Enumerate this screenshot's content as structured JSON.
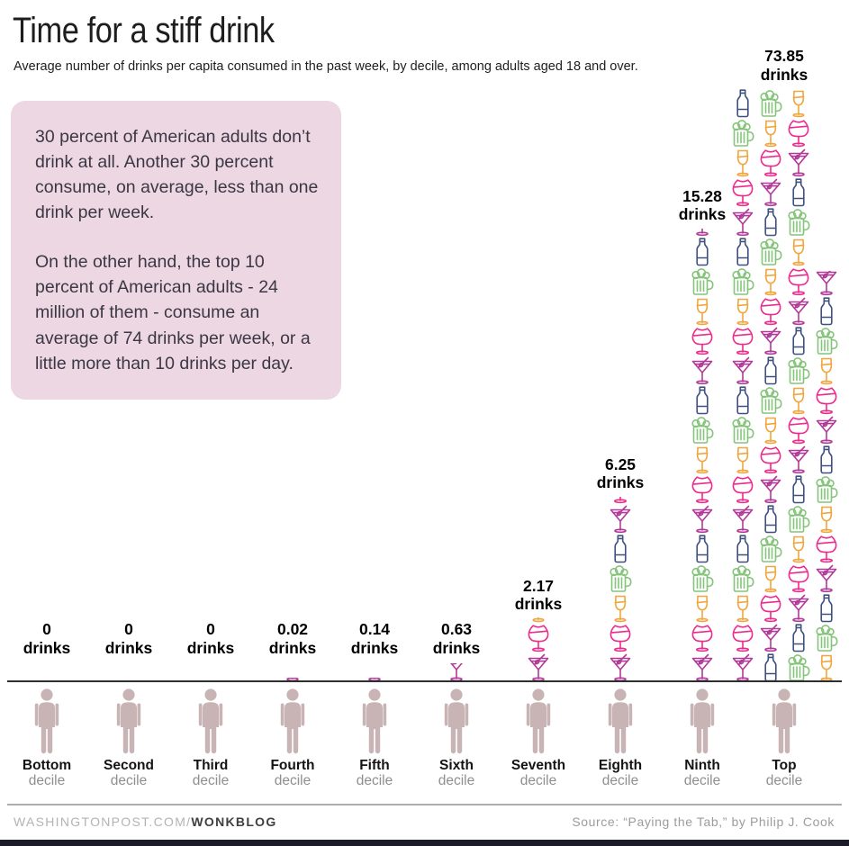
{
  "header": {
    "title": "Time for a stiff drink",
    "subtitle": "Average number of drinks per capita consumed in the past week, by decile, among adults aged 18 and over."
  },
  "annotation": {
    "bg_color": "#ecd7e3",
    "p1": "30 percent of American adults don’t drink at all. Another 30 percent consume, on average, less than one drink per week.",
    "p2": "On the other hand, the top 10 percent of American adults - 24 million of them - consume an average of 74 drinks per week, or a little more than 10 drinks per day."
  },
  "chart_data": {
    "type": "bar",
    "subtype": "pictogram-stack",
    "title": "Time for a stiff drink",
    "unit_label": "drinks",
    "categories": [
      "Bottom",
      "Second",
      "Third",
      "Fourth",
      "Fifth",
      "Sixth",
      "Seventh",
      "Eighth",
      "Ninth",
      "Top"
    ],
    "category_sub_label": "decile",
    "values": [
      0,
      0,
      0,
      0.02,
      0.14,
      0.63,
      2.17,
      6.25,
      15.28,
      73.85
    ],
    "value_labels": [
      "0",
      "0",
      "0",
      "0.02",
      "0.14",
      "0.63",
      "2.17",
      "6.25",
      "15.28",
      "73.85"
    ],
    "icon_cycle_bottom_up": [
      "martini",
      "wine",
      "smallwine",
      "beer",
      "bottle"
    ],
    "icon_colors": {
      "martini": "#b13a98",
      "wine": "#ee2a8b",
      "smallwine": "#f0a63d",
      "beer": "#85c47b",
      "bottle": "#40517f"
    },
    "top_decile_columns": [
      {
        "count": 20,
        "phase": 0
      },
      {
        "count": 20,
        "phase": 4
      },
      {
        "count": 20,
        "phase": 3
      },
      {
        "count": 13.85,
        "phase": 2
      }
    ],
    "person_color": "#c8b4b4",
    "grid": false,
    "legend": false
  },
  "footer": {
    "left_normal": "WASHINGTONPOST.COM/",
    "left_bold": "WONKBLOG",
    "source": "Source: “Paying the Tab,” by Philip J. Cook"
  }
}
